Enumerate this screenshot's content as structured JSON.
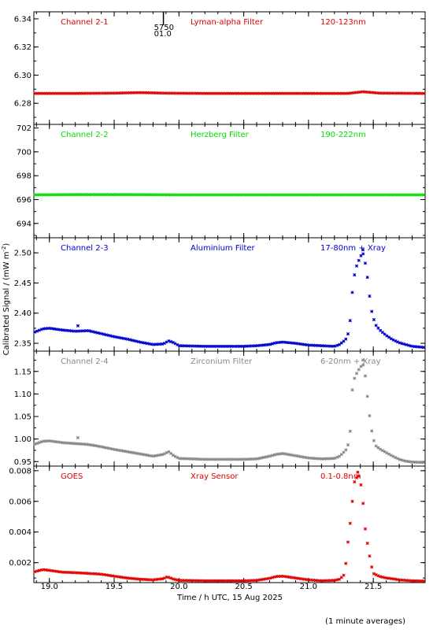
{
  "chart_data": {
    "type": "scatter",
    "xlabel": "Time / h UTC, 15 Aug 2025",
    "ylabel": "Calibrated Signal / (mW m",
    "ylabel_sup": "-2",
    "ylabel_end": ")",
    "footnote": "(1 minute averages)",
    "xlim": [
      18.88,
      21.9
    ],
    "xticks": [
      19.0,
      19.5,
      20.0,
      20.5,
      21.0,
      21.5
    ],
    "xtick_labels": [
      "19.0",
      "19.5",
      "20.0",
      "20.5",
      "21.0",
      "21.5"
    ],
    "marker": {
      "label_top": "5750",
      "label_bottom": "01.0",
      "x": 19.88
    },
    "panels": [
      {
        "channel": "Channel 2-1",
        "filter": "Lyman-alpha Filter",
        "band": "120-123nm",
        "color": "#e00000",
        "ylim": [
          6.265,
          6.345
        ],
        "yticks": [
          6.28,
          6.3,
          6.32,
          6.34
        ],
        "ytick_labels": [
          "6.28",
          "6.30",
          "6.32",
          "6.34"
        ],
        "series": [
          [
            18.88,
            6.287
          ],
          [
            19.2,
            6.287
          ],
          [
            19.5,
            6.2872
          ],
          [
            19.7,
            6.2876
          ],
          [
            19.9,
            6.2872
          ],
          [
            20.2,
            6.287
          ],
          [
            20.8,
            6.287
          ],
          [
            21.3,
            6.287
          ],
          [
            21.42,
            6.2882
          ],
          [
            21.55,
            6.2872
          ],
          [
            21.9,
            6.287
          ]
        ]
      },
      {
        "channel": "Channel 2-2",
        "filter": "Herzberg Filter",
        "band": "190-222nm",
        "color": "#00dd00",
        "ylim": [
          692.8,
          702.3
        ],
        "yticks": [
          694,
          696,
          698,
          700,
          702
        ],
        "ytick_labels": [
          "694",
          "696",
          "698",
          "700",
          "702"
        ],
        "series": [
          [
            18.88,
            696.4
          ],
          [
            19.2,
            696.42
          ],
          [
            19.6,
            696.42
          ],
          [
            20.0,
            696.4
          ],
          [
            20.5,
            696.4
          ],
          [
            21.0,
            696.4
          ],
          [
            21.5,
            696.4
          ],
          [
            21.9,
            696.4
          ]
        ]
      },
      {
        "channel": "Channel 2-3",
        "filter": "Aluminium Filter",
        "band": "17-80nm + Xray",
        "color": "#0000cc",
        "ylim": [
          2.337,
          2.525
        ],
        "yticks": [
          2.35,
          2.4,
          2.45,
          2.5
        ],
        "ytick_labels": [
          "2.35",
          "2.40",
          "2.45",
          "2.50"
        ],
        "series": [
          [
            18.88,
            2.368
          ],
          [
            18.95,
            2.374
          ],
          [
            19.0,
            2.375
          ],
          [
            19.1,
            2.372
          ],
          [
            19.2,
            2.37
          ],
          [
            19.3,
            2.371
          ],
          [
            19.4,
            2.366
          ],
          [
            19.5,
            2.361
          ],
          [
            19.6,
            2.357
          ],
          [
            19.7,
            2.352
          ],
          [
            19.8,
            2.348
          ],
          [
            19.88,
            2.349
          ],
          [
            19.92,
            2.354
          ],
          [
            19.96,
            2.351
          ],
          [
            20.0,
            2.346
          ],
          [
            20.2,
            2.345
          ],
          [
            20.5,
            2.345
          ],
          [
            20.6,
            2.346
          ],
          [
            20.7,
            2.348
          ],
          [
            20.75,
            2.351
          ],
          [
            20.8,
            2.352
          ],
          [
            20.9,
            2.35
          ],
          [
            21.0,
            2.347
          ],
          [
            21.1,
            2.346
          ],
          [
            21.2,
            2.345
          ],
          [
            21.24,
            2.348
          ],
          [
            21.28,
            2.355
          ],
          [
            21.3,
            2.36
          ],
          [
            21.32,
            2.384
          ],
          [
            21.34,
            2.44
          ],
          [
            21.36,
            2.472
          ],
          [
            21.38,
            2.483
          ],
          [
            21.4,
            2.494
          ],
          [
            21.42,
            2.499
          ],
          [
            21.43,
            2.494
          ],
          [
            21.44,
            2.48
          ],
          [
            21.46,
            2.452
          ],
          [
            21.48,
            2.41
          ],
          [
            21.5,
            2.392
          ],
          [
            21.52,
            2.38
          ],
          [
            21.55,
            2.372
          ],
          [
            21.6,
            2.363
          ],
          [
            21.65,
            2.356
          ],
          [
            21.7,
            2.351
          ],
          [
            21.75,
            2.348
          ],
          [
            21.8,
            2.345
          ],
          [
            21.9,
            2.343
          ]
        ],
        "outliers": [
          [
            19.22,
            2.379
          ],
          [
            21.42,
            2.505
          ]
        ]
      },
      {
        "channel": "Channel 2-4",
        "filter": "Zirconium Filter",
        "band": "6-20nm + Xray",
        "color": "#888888",
        "ylim": [
          0.94,
          1.195
        ],
        "yticks": [
          0.95,
          1.0,
          1.05,
          1.1,
          1.15
        ],
        "ytick_labels": [
          "0.95",
          "1.00",
          "1.05",
          "1.10",
          "1.15"
        ],
        "series": [
          [
            18.88,
            0.988
          ],
          [
            18.95,
            0.995
          ],
          [
            19.0,
            0.996
          ],
          [
            19.1,
            0.992
          ],
          [
            19.2,
            0.99
          ],
          [
            19.3,
            0.988
          ],
          [
            19.4,
            0.983
          ],
          [
            19.5,
            0.977
          ],
          [
            19.6,
            0.972
          ],
          [
            19.7,
            0.967
          ],
          [
            19.8,
            0.962
          ],
          [
            19.88,
            0.966
          ],
          [
            19.92,
            0.972
          ],
          [
            19.96,
            0.963
          ],
          [
            20.0,
            0.957
          ],
          [
            20.2,
            0.955
          ],
          [
            20.5,
            0.955
          ],
          [
            20.6,
            0.956
          ],
          [
            20.7,
            0.962
          ],
          [
            20.75,
            0.966
          ],
          [
            20.8,
            0.968
          ],
          [
            20.9,
            0.963
          ],
          [
            21.0,
            0.958
          ],
          [
            21.1,
            0.956
          ],
          [
            21.2,
            0.957
          ],
          [
            21.24,
            0.962
          ],
          [
            21.27,
            0.97
          ],
          [
            21.3,
            0.98
          ],
          [
            21.32,
            1.01
          ],
          [
            21.34,
            1.12
          ],
          [
            21.36,
            1.14
          ],
          [
            21.38,
            1.15
          ],
          [
            21.4,
            1.16
          ],
          [
            21.42,
            1.165
          ],
          [
            21.43,
            1.16
          ],
          [
            21.44,
            1.135
          ],
          [
            21.46,
            1.08
          ],
          [
            21.48,
            1.03
          ],
          [
            21.5,
            1.0
          ],
          [
            21.52,
            0.985
          ],
          [
            21.55,
            0.978
          ],
          [
            21.6,
            0.97
          ],
          [
            21.65,
            0.962
          ],
          [
            21.7,
            0.955
          ],
          [
            21.75,
            0.951
          ],
          [
            21.8,
            0.949
          ],
          [
            21.9,
            0.948
          ]
        ],
        "outliers": [
          [
            19.22,
            1.003
          ],
          [
            21.42,
            1.175
          ]
        ]
      },
      {
        "channel": "GOES",
        "filter": "Xray Sensor",
        "band": "0.1-0.8nm",
        "color": "#e00000",
        "ylim": [
          0.0007,
          0.0083
        ],
        "yticks": [
          0.002,
          0.004,
          0.006,
          0.008
        ],
        "ytick_labels": [
          "0.002",
          "0.004",
          "0.006",
          "0.008"
        ],
        "series": [
          [
            18.88,
            0.0014
          ],
          [
            18.95,
            0.00155
          ],
          [
            19.0,
            0.0015
          ],
          [
            19.1,
            0.00138
          ],
          [
            19.2,
            0.00135
          ],
          [
            19.3,
            0.0013
          ],
          [
            19.4,
            0.00125
          ],
          [
            19.5,
            0.00112
          ],
          [
            19.6,
            0.001
          ],
          [
            19.7,
            0.00092
          ],
          [
            19.8,
            0.00088
          ],
          [
            19.88,
            0.00096
          ],
          [
            19.91,
            0.00108
          ],
          [
            19.96,
            0.00092
          ],
          [
            20.0,
            0.00085
          ],
          [
            20.2,
            0.00082
          ],
          [
            20.5,
            0.00082
          ],
          [
            20.6,
            0.00085
          ],
          [
            20.7,
            0.00098
          ],
          [
            20.75,
            0.0011
          ],
          [
            20.8,
            0.00112
          ],
          [
            20.9,
            0.001
          ],
          [
            21.0,
            0.00088
          ],
          [
            21.1,
            0.00082
          ],
          [
            21.2,
            0.00085
          ],
          [
            21.24,
            0.00092
          ],
          [
            21.28,
            0.00125
          ],
          [
            21.3,
            0.003
          ],
          [
            21.33,
            0.0052
          ],
          [
            21.35,
            0.0072
          ],
          [
            21.37,
            0.0075
          ],
          [
            21.38,
            0.0078
          ],
          [
            21.4,
            0.0074
          ],
          [
            21.42,
            0.006
          ],
          [
            21.44,
            0.004
          ],
          [
            21.46,
            0.003
          ],
          [
            21.48,
            0.002
          ],
          [
            21.5,
            0.0013
          ],
          [
            21.55,
            0.0011
          ],
          [
            21.6,
            0.001
          ],
          [
            21.65,
            0.00095
          ],
          [
            21.7,
            0.00088
          ],
          [
            21.75,
            0.00085
          ],
          [
            21.8,
            0.00082
          ],
          [
            21.9,
            0.0008
          ]
        ],
        "outliers": [
          [
            21.38,
            0.0079
          ]
        ]
      }
    ]
  }
}
